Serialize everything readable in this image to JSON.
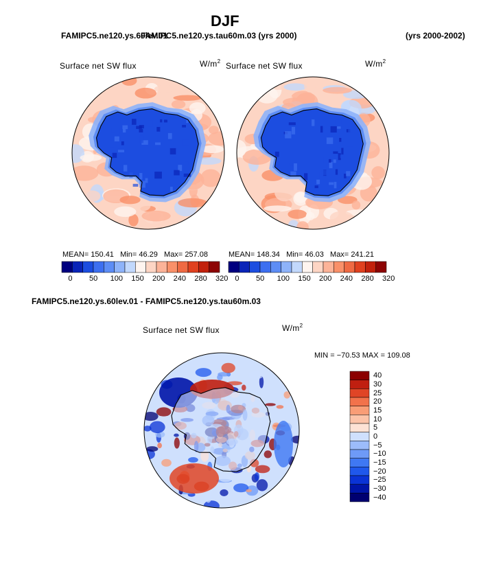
{
  "figure": {
    "title": "DJF",
    "case_left": "FAMIPC5.ne120.ys.60lev.01",
    "case_overlap": "FAMIPC5.ne120.ys.tau60m.03 (yrs 2000)",
    "years_right": "(yrs 2000-2002)",
    "diff_title": "FAMIPC5.ne120.ys.60lev.01 - FAMIPC5.ne120.ys.tau60m.03"
  },
  "colors": {
    "seq": [
      "#00007f",
      "#0a24b8",
      "#1c4de0",
      "#3d6ff0",
      "#5d8df5",
      "#8eb3f9",
      "#c2d8fc",
      "#fef4ef",
      "#fdd5c4",
      "#fcb398",
      "#f99069",
      "#ef6a43",
      "#e0411f",
      "#c2210c",
      "#8d0404"
    ],
    "diff": [
      "#000070",
      "#0015a8",
      "#0a33d6",
      "#1f58ec",
      "#3f78f3",
      "#6e9af7",
      "#9cbcfa",
      "#cfe0fd",
      "#fde2d5",
      "#fcc3a8",
      "#f99d76",
      "#f2724b",
      "#e04526",
      "#c01f10",
      "#8b0000"
    ],
    "coast": "#000000",
    "ocean_base": "#fde4d6",
    "ice": "#1f4fe0"
  },
  "chart_data": [
    {
      "type": "heatmap",
      "panel": "left",
      "title": "Surface net SW flux",
      "units": "W/m",
      "units_exp": "2",
      "stats": {
        "mean_label": "MEAN=",
        "mean": "150.41",
        "min_label": "Min=",
        "min": "46.29",
        "max_label": "Max=",
        "max": "257.08"
      },
      "colorbar_ticks": [
        "0",
        "50",
        "100",
        "150",
        "200",
        "240",
        "280",
        "320"
      ],
      "levels": 15
    },
    {
      "type": "heatmap",
      "panel": "right",
      "title": "Surface net SW flux",
      "units": "W/m",
      "units_exp": "2",
      "stats": {
        "mean_label": "MEAN=",
        "mean": "148.34",
        "min_label": "Min=",
        "min": "46.03",
        "max_label": "Max=",
        "max": "241.21"
      },
      "colorbar_ticks": [
        "0",
        "50",
        "100",
        "150",
        "200",
        "240",
        "280",
        "320"
      ],
      "levels": 15
    },
    {
      "type": "heatmap",
      "panel": "difference",
      "title": "Surface net SW flux",
      "units": "W/m",
      "units_exp": "2",
      "stats_text": "MIN = −70.53  MAX = 109.08",
      "min": -70.53,
      "max": 109.08,
      "colorbar_ticks": [
        "40",
        "30",
        "25",
        "20",
        "15",
        "10",
        "5",
        "0",
        "−5",
        "−10",
        "−15",
        "−20",
        "−25",
        "−30",
        "−40"
      ]
    }
  ]
}
